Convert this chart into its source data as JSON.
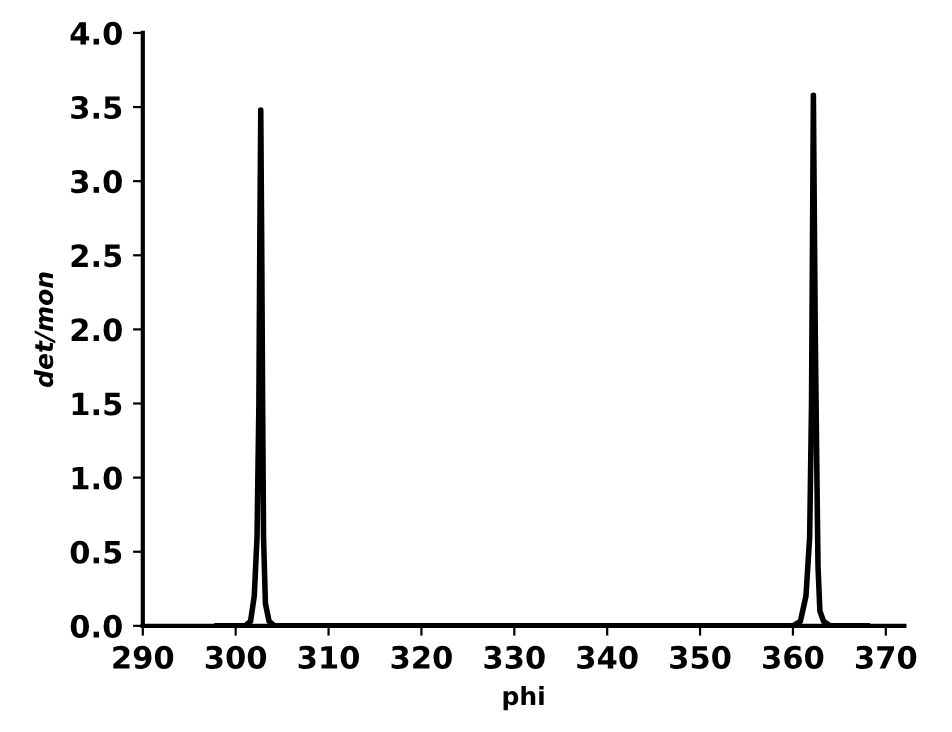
{
  "chart_data": {
    "type": "line",
    "xlabel": "phi",
    "ylabel": "det/mon",
    "xlim": [
      290,
      372
    ],
    "ylim": [
      0,
      4.0
    ],
    "xticks": [
      290,
      300,
      310,
      320,
      330,
      340,
      350,
      360,
      370
    ],
    "yticks": [
      {
        "value": 0,
        "label": "0.0"
      },
      {
        "value": 0.5,
        "label": "0.5"
      },
      {
        "value": 1.0,
        "label": "1.0"
      },
      {
        "value": 1.5,
        "label": "1.5"
      },
      {
        "value": 2.0,
        "label": "2.0"
      },
      {
        "value": 2.5,
        "label": "2.5"
      },
      {
        "value": 3.0,
        "label": "3.0"
      },
      {
        "value": 3.5,
        "label": "3.5"
      },
      {
        "value": 4.0,
        "label": "4.0"
      }
    ],
    "grid": false,
    "legend": false,
    "marker": "none",
    "line_style": "solid",
    "series": [
      {
        "color": "#000000",
        "x": [
          298,
          301.0,
          301.6,
          302.0,
          302.3,
          302.5,
          302.6,
          302.7,
          302.8,
          302.9,
          303.0,
          303.2,
          303.6,
          304.2,
          310,
          330,
          350,
          360.0,
          360.8,
          361.4,
          361.8,
          362.0,
          362.2,
          362.4,
          362.6,
          362.7,
          362.9,
          363.3,
          364.0,
          368
        ],
        "values": [
          0,
          0,
          0.03,
          0.2,
          0.6,
          1.5,
          2.6,
          3.48,
          2.6,
          1.5,
          0.6,
          0.15,
          0.03,
          0,
          0,
          0,
          0,
          0,
          0.03,
          0.2,
          0.6,
          1.5,
          3.58,
          2.0,
          0.9,
          0.4,
          0.1,
          0.03,
          0,
          0
        ]
      }
    ]
  }
}
